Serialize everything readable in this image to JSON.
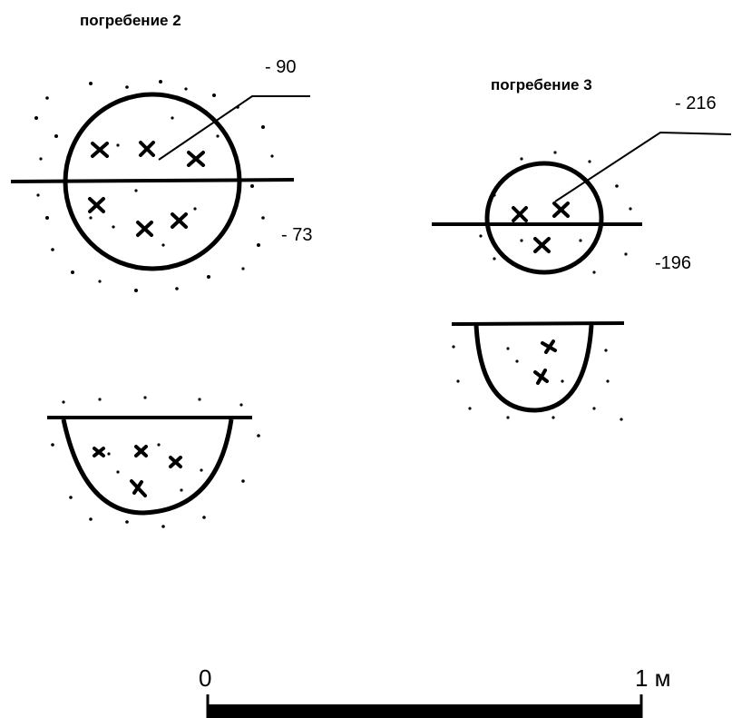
{
  "burial_2": {
    "title": "погребение 2",
    "depth_top": "- 90",
    "depth_bottom": "- 73"
  },
  "burial_3": {
    "title": "погребение 3",
    "depth_top": "- 216",
    "depth_bottom": "-196"
  },
  "scale": {
    "start_label": "0",
    "end_label": "1 м"
  }
}
